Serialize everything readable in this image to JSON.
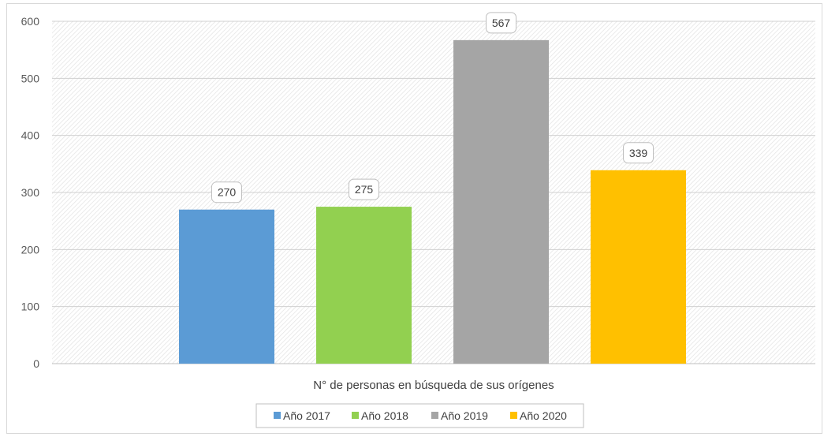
{
  "chart_data": {
    "type": "bar",
    "categories": [
      "N° de personas en búsqueda de sus orígenes"
    ],
    "series": [
      {
        "name": "Año 2017",
        "values": [
          270
        ],
        "color": "#5b9bd5"
      },
      {
        "name": "Año 2018",
        "values": [
          275
        ],
        "color": "#92d050"
      },
      {
        "name": "Año 2019",
        "values": [
          567
        ],
        "color": "#a5a5a5"
      },
      {
        "name": "Año 2020",
        "values": [
          339
        ],
        "color": "#ffc000"
      }
    ],
    "xlabel": "N° de personas en búsqueda de sus orígenes",
    "ylim": [
      0,
      600
    ],
    "yticks": [
      0,
      100,
      200,
      300,
      400,
      500,
      600
    ],
    "grid": true,
    "legend": "bottom",
    "data_labels": true,
    "plot_background": "diagonal-hatch"
  }
}
